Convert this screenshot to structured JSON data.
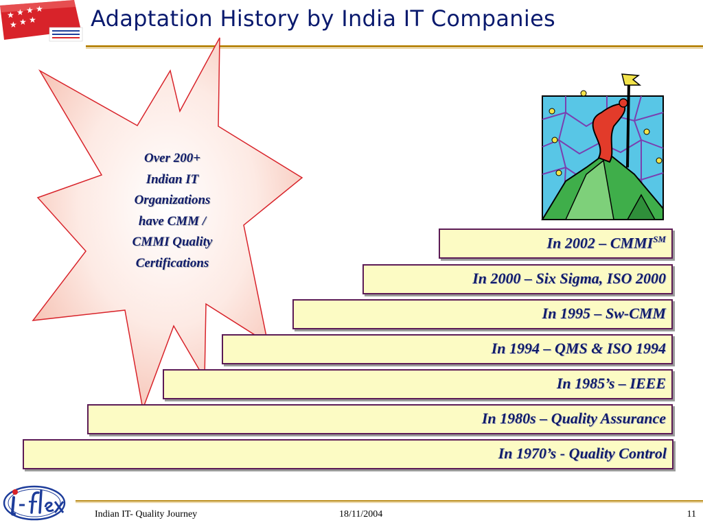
{
  "header": {
    "title": "Adaptation History by India IT Companies",
    "logo_icon": "simposio-flag-logo"
  },
  "callout": {
    "icon": "starburst-callout",
    "lines": [
      "Over 200+",
      "Indian IT",
      "Organizations",
      "have CMM /",
      "CMMI Quality",
      "Certifications"
    ]
  },
  "clipart": {
    "icon": "mountain-climber-flag-icon"
  },
  "steps": [
    {
      "text": "In 2002 – CMMI",
      "sup": "SM"
    },
    {
      "text": "In 2000 – Six Sigma, ISO 2000"
    },
    {
      "text": "In 1995 – Sw-CMM"
    },
    {
      "text": "In 1994 – QMS & ISO 1994"
    },
    {
      "text": "In 1985’s – IEEE"
    },
    {
      "text": "In 1980s – Quality Assurance"
    },
    {
      "text": "In 1970’s - Quality Control"
    }
  ],
  "footer": {
    "logo_icon": "i-flex-logo",
    "left": "Indian IT- Quality Journey",
    "date": "18/11/2004",
    "page": "11"
  },
  "colors": {
    "title": "#0a1a6e",
    "step_fill": "#fcfbc4",
    "step_border": "#5b1a55",
    "accent_rule": "#b8860b"
  }
}
